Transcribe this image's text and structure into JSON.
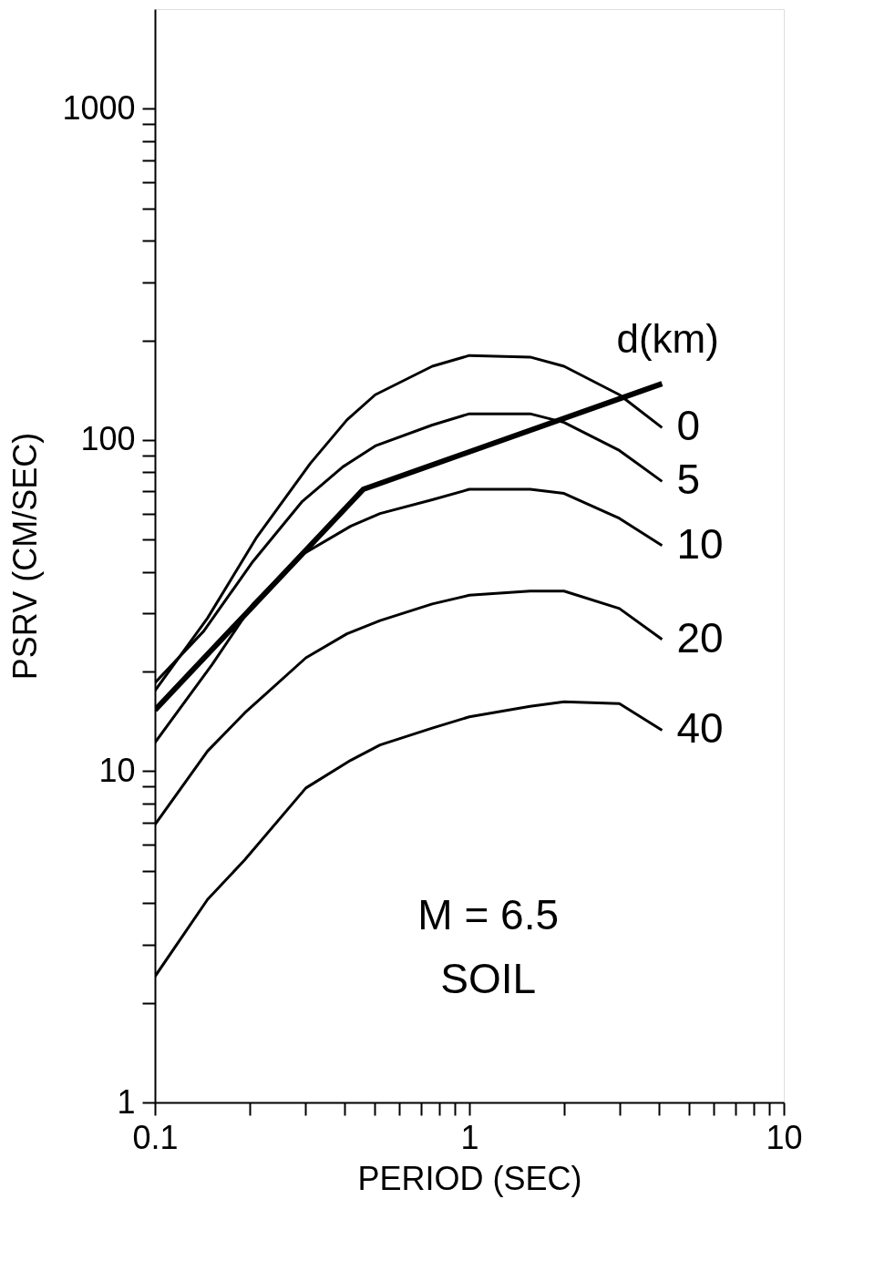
{
  "chart_data": {
    "type": "line",
    "xlabel": "PERIOD (SEC)",
    "ylabel": "PSRV (CM/SEC)",
    "legend_title": "d(km)",
    "log": "xy",
    "grid": false,
    "legend": false,
    "xlim": [
      0.1,
      10
    ],
    "ylim": [
      1,
      2000
    ],
    "xticks": [
      0.1,
      {
        "value": 0.2,
        "label": null
      },
      {
        "value": 0.3,
        "label": null
      },
      {
        "value": 0.4,
        "label": null
      },
      {
        "value": 0.5,
        "label": null
      },
      {
        "value": 0.6,
        "label": null
      },
      {
        "value": 0.7,
        "label": null
      },
      {
        "value": 0.8,
        "label": null
      },
      {
        "value": 0.9,
        "label": null
      },
      1,
      {
        "value": 2,
        "label": null
      },
      {
        "value": 3,
        "label": null
      },
      {
        "value": 4,
        "label": null
      },
      {
        "value": 5,
        "label": null
      },
      {
        "value": 6,
        "label": null
      },
      {
        "value": 7,
        "label": null
      },
      {
        "value": 8,
        "label": null
      },
      {
        "value": 9,
        "label": null
      },
      10
    ],
    "yticks": [
      1,
      {
        "value": 2,
        "label": null
      },
      {
        "value": 3,
        "label": null
      },
      {
        "value": 4,
        "label": null
      },
      {
        "value": 5,
        "label": null
      },
      {
        "value": 6,
        "label": null
      },
      {
        "value": 7,
        "label": null
      },
      {
        "value": 8,
        "label": null
      },
      {
        "value": 9,
        "label": null
      },
      10,
      {
        "value": 20,
        "label": null
      },
      {
        "value": 30,
        "label": null
      },
      {
        "value": 40,
        "label": null
      },
      {
        "value": 50,
        "label": null
      },
      {
        "value": 60,
        "label": null
      },
      {
        "value": 70,
        "label": null
      },
      {
        "value": 80,
        "label": null
      },
      {
        "value": 90,
        "label": null
      },
      100,
      {
        "value": 200,
        "label": null
      },
      {
        "value": 300,
        "label": null
      },
      {
        "value": 400,
        "label": null
      },
      {
        "value": 500,
        "label": null
      },
      {
        "value": 600,
        "label": null
      },
      {
        "value": 700,
        "label": null
      },
      {
        "value": 800,
        "label": null
      },
      {
        "value": 900,
        "label": null
      },
      1000
    ],
    "annotations": [
      "M = 6.5",
      "SOIL"
    ],
    "series": [
      {
        "name": "0",
        "color": "#000000",
        "x": [
          0.1,
          0.147,
          0.211,
          0.312,
          0.408,
          0.502,
          0.762,
          1,
          1.56,
          2.0,
          3.0,
          4.1
        ],
        "values": [
          17.5,
          29,
          51,
          85,
          115,
          137,
          167,
          180,
          178,
          167,
          137,
          109
        ]
      },
      {
        "name": "5",
        "color": "#000000",
        "x": [
          0.1,
          0.143,
          0.205,
          0.293,
          0.396,
          0.502,
          0.762,
          1,
          1.56,
          2.0,
          3.0,
          4.1
        ],
        "values": [
          18.5,
          26.5,
          43,
          65,
          83,
          96,
          111,
          120,
          120,
          113,
          93,
          75
        ]
      },
      {
        "name": "10",
        "color": "#000000",
        "x": [
          0.1,
          0.152,
          0.205,
          0.293,
          0.42,
          0.52,
          0.762,
          1,
          1.56,
          2.0,
          3.0,
          4.1
        ],
        "values": [
          12.2,
          21,
          32,
          45,
          55,
          60,
          66,
          71,
          71,
          69,
          58,
          48
        ]
      },
      {
        "name": "20",
        "color": "#000000",
        "x": [
          0.1,
          0.147,
          0.193,
          0.302,
          0.408,
          0.52,
          0.762,
          1,
          1.56,
          2.0,
          3.0,
          4.1
        ],
        "values": [
          6.9,
          11.5,
          15,
          22,
          26,
          28.5,
          32,
          34,
          35,
          35,
          31,
          25
        ]
      },
      {
        "name": "40",
        "color": "#000000",
        "x": [
          0.1,
          0.147,
          0.193,
          0.302,
          0.42,
          0.52,
          0.762,
          1,
          1.56,
          2.0,
          3.0,
          4.1
        ],
        "values": [
          2.4,
          4.1,
          5.4,
          8.9,
          10.8,
          12,
          13.5,
          14.6,
          15.7,
          16.2,
          16,
          13.3
        ]
      },
      {
        "color": "#000000",
        "x": [
          0.1,
          0.46,
          4.1
        ],
        "values": [
          15.3,
          71,
          148
        ]
      }
    ]
  }
}
